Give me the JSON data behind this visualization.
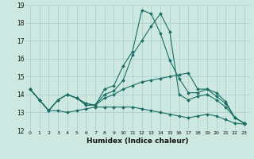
{
  "xlabel": "Humidex (Indice chaleur)",
  "bg_color": "#cce8e0",
  "grid_color": "#aacccc",
  "line_color": "#1a6e64",
  "xmin": -0.5,
  "xmax": 23.5,
  "ymin": 12,
  "ymax": 19,
  "yticks": [
    12,
    13,
    14,
    15,
    16,
    17,
    18,
    19
  ],
  "xticks": [
    0,
    1,
    2,
    3,
    4,
    5,
    6,
    7,
    8,
    9,
    10,
    11,
    12,
    13,
    14,
    15,
    16,
    17,
    18,
    19,
    20,
    21,
    22,
    23
  ],
  "series": [
    [
      14.3,
      13.7,
      13.1,
      13.7,
      14.0,
      13.8,
      13.5,
      13.4,
      14.3,
      14.5,
      15.6,
      16.4,
      18.7,
      18.5,
      17.4,
      15.9,
      14.9,
      14.1,
      14.1,
      14.3,
      13.9,
      13.5,
      12.7,
      12.4
    ],
    [
      14.3,
      13.7,
      13.1,
      13.7,
      14.0,
      13.8,
      13.5,
      13.4,
      14.0,
      14.2,
      14.8,
      16.2,
      17.0,
      17.8,
      18.5,
      17.5,
      14.0,
      13.7,
      13.9,
      14.0,
      13.7,
      13.3,
      12.7,
      12.4
    ],
    [
      14.3,
      13.7,
      13.1,
      13.7,
      14.0,
      13.8,
      13.4,
      13.4,
      13.8,
      14.0,
      14.3,
      14.5,
      14.7,
      14.8,
      14.9,
      15.0,
      15.1,
      15.2,
      14.3,
      14.3,
      14.1,
      13.6,
      12.7,
      12.4
    ],
    [
      14.3,
      13.7,
      13.1,
      13.1,
      13.0,
      13.1,
      13.2,
      13.3,
      13.3,
      13.3,
      13.3,
      13.3,
      13.2,
      13.1,
      13.0,
      12.9,
      12.8,
      12.7,
      12.8,
      12.9,
      12.8,
      12.6,
      12.4,
      12.35
    ]
  ]
}
